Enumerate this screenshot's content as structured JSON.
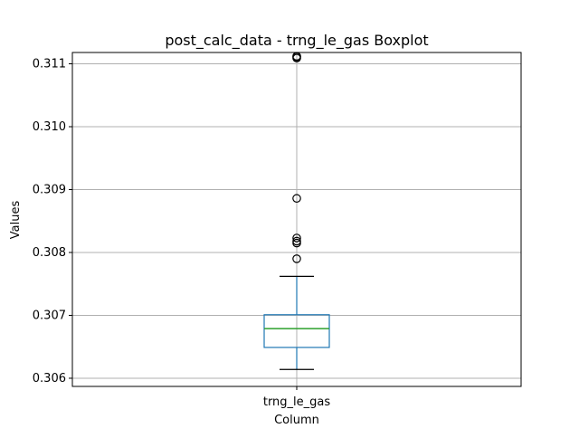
{
  "chart_data": {
    "type": "boxplot",
    "title": "post_calc_data - trng_le_gas Boxplot",
    "xlabel": "Column",
    "ylabel": "Values",
    "categories": [
      "trng_le_gas"
    ],
    "ylim": [
      0.30587,
      0.31118
    ],
    "yticks": [
      0.306,
      0.307,
      0.308,
      0.309,
      0.31,
      0.311
    ],
    "ytick_labels": [
      "0.306",
      "0.307",
      "0.308",
      "0.309",
      "0.310",
      "0.311"
    ],
    "grid": true,
    "series": [
      {
        "name": "trng_le_gas",
        "whisker_low": 0.30614,
        "q1": 0.30649,
        "median": 0.30679,
        "q3": 0.30701,
        "whisker_high": 0.30762,
        "outliers": [
          0.3079,
          0.30815,
          0.30818,
          0.30823,
          0.30886,
          0.31109,
          0.31111,
          0.31112
        ]
      }
    ],
    "colors": {
      "box": "#1f77b4",
      "median": "#2ca02c",
      "whisker_cap": "#000000",
      "outlier": "#000000",
      "grid": "#b0b0b0"
    }
  }
}
